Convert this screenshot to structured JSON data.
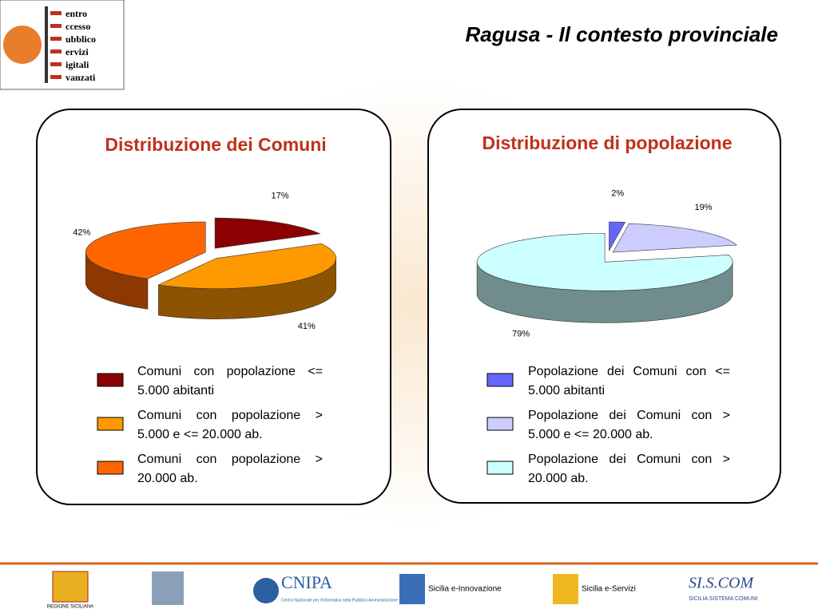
{
  "title": "Ragusa - Il contesto provinciale",
  "logo": [
    "entro",
    "ccesso",
    "ubblico",
    "ervizi",
    "igitali",
    "vanzati"
  ],
  "chart_data": [
    {
      "type": "pie",
      "title": "Distribuzione dei Comuni",
      "categories": [
        "Comuni con popolazione <= 5.000 abitanti",
        "Comuni con popolazione > 5.000 e <= 20.000 ab.",
        "Comuni con popolazione > 20.000 ab."
      ],
      "values": [
        17,
        41,
        42
      ],
      "value_labels": [
        "17%",
        "41%",
        "42%"
      ],
      "colors": [
        "#8b0000",
        "#ff9900",
        "#ff6600"
      ]
    },
    {
      "type": "pie",
      "title": "Distribuzione di popolazione",
      "categories": [
        "Popolazione dei Comuni con <= 5.000 abitanti",
        "Popolazione dei Comuni con > 5.000 e <= 20.000 ab.",
        "Popolazione dei Comuni con > 20.000 ab."
      ],
      "values": [
        2,
        19,
        79
      ],
      "value_labels": [
        "2%",
        "19%",
        "79%"
      ],
      "colors": [
        "#6666ff",
        "#ccccff",
        "#ccffff"
      ]
    }
  ],
  "footer": {
    "regione": "REGIONE SICILIANA",
    "cnipa": "CNIPA",
    "cnipa_sub": "Centro Nazionale per l'Informatica nella Pubblica Amministrazione",
    "innovazione": "Sicilia e-Innovazione",
    "servizi": "Sicilia e-Servizi",
    "siscom": "SI.S.COM",
    "siscom_sub": "SICILIA SISTEMA COMUNI"
  }
}
